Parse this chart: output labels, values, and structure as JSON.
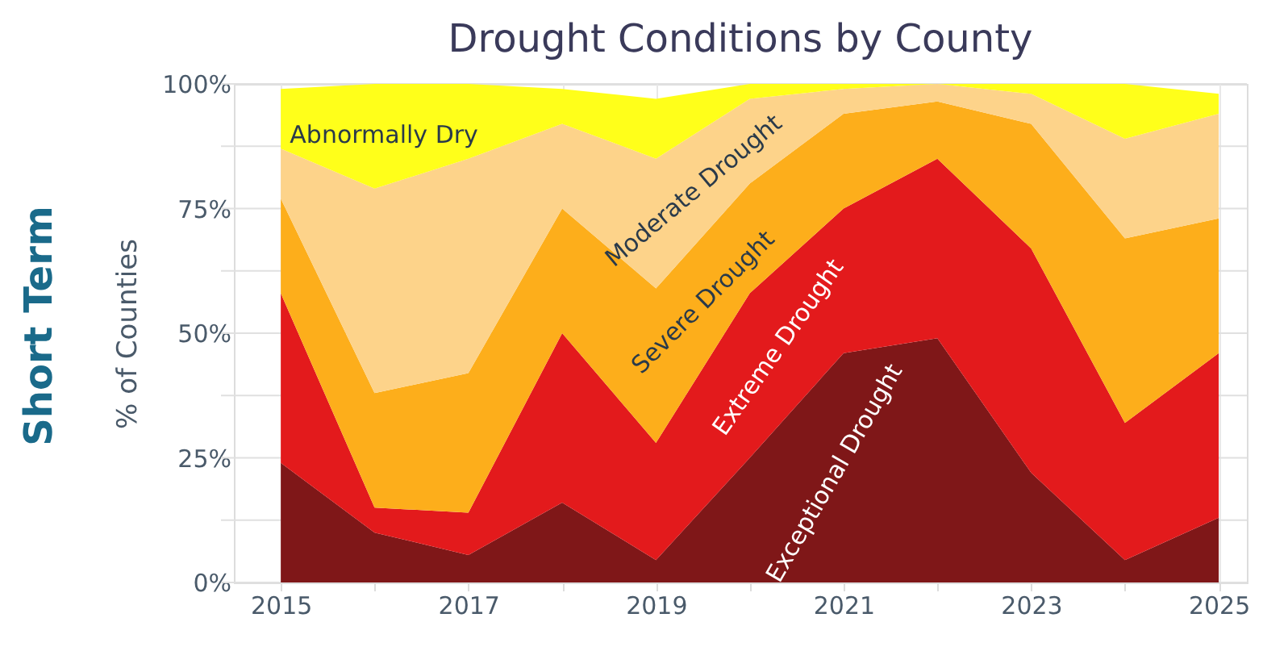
{
  "chart_data": {
    "type": "area",
    "title": "Drought Conditions by County",
    "ylabel": "% of Counties",
    "annotations": [
      "Short Term"
    ],
    "stacked": true,
    "legend": false,
    "grid": true,
    "x": [
      2015,
      2016,
      2017,
      2018,
      2019,
      2020,
      2021,
      2022,
      2023,
      2024,
      2025
    ],
    "xlim": [
      2014.5,
      2025.3
    ],
    "xticks": [
      2015,
      {
        "value": 2016,
        "label": null
      },
      2017,
      {
        "value": 2018,
        "label": null
      },
      2019,
      {
        "value": 2020,
        "label": null
      },
      2021,
      {
        "value": 2022,
        "label": null
      },
      2023,
      {
        "value": 2024,
        "label": null
      },
      2025
    ],
    "ylim": [
      0,
      100
    ],
    "yticks": [
      {
        "value": 0,
        "label": "0%"
      },
      {
        "value": 12.5,
        "label": null
      },
      {
        "value": 25,
        "label": "25%"
      },
      {
        "value": 37.5,
        "label": null
      },
      {
        "value": 50,
        "label": "50%"
      },
      {
        "value": 62.5,
        "label": null
      },
      {
        "value": 75,
        "label": "75%"
      },
      {
        "value": 87.5,
        "label": null
      },
      {
        "value": 100,
        "label": "100%"
      }
    ],
    "series": [
      {
        "name": "Exceptional Drought",
        "color": "#7f1718",
        "values": [
          24,
          10,
          5.5,
          16,
          4.5,
          25,
          46,
          49,
          22,
          4.5,
          13
        ]
      },
      {
        "name": "Extreme Drought",
        "color": "#e31a1c",
        "values": [
          34,
          5,
          8.5,
          34,
          23.5,
          33,
          29,
          36,
          45,
          27.5,
          33
        ]
      },
      {
        "name": "Severe Drought",
        "color": "#fdae1b",
        "values": [
          19,
          23,
          28,
          25,
          31,
          22,
          19,
          11.5,
          25,
          37,
          27
        ]
      },
      {
        "name": "Moderate Drought",
        "color": "#fdd38a",
        "values": [
          10,
          41,
          43,
          17,
          26,
          17,
          5,
          3.5,
          6,
          20,
          21
        ]
      },
      {
        "name": "Abnormally Dry",
        "color": "#ffff1a",
        "values": [
          12,
          21,
          15,
          7,
          12,
          3,
          1,
          0,
          2,
          11,
          4
        ]
      }
    ]
  }
}
